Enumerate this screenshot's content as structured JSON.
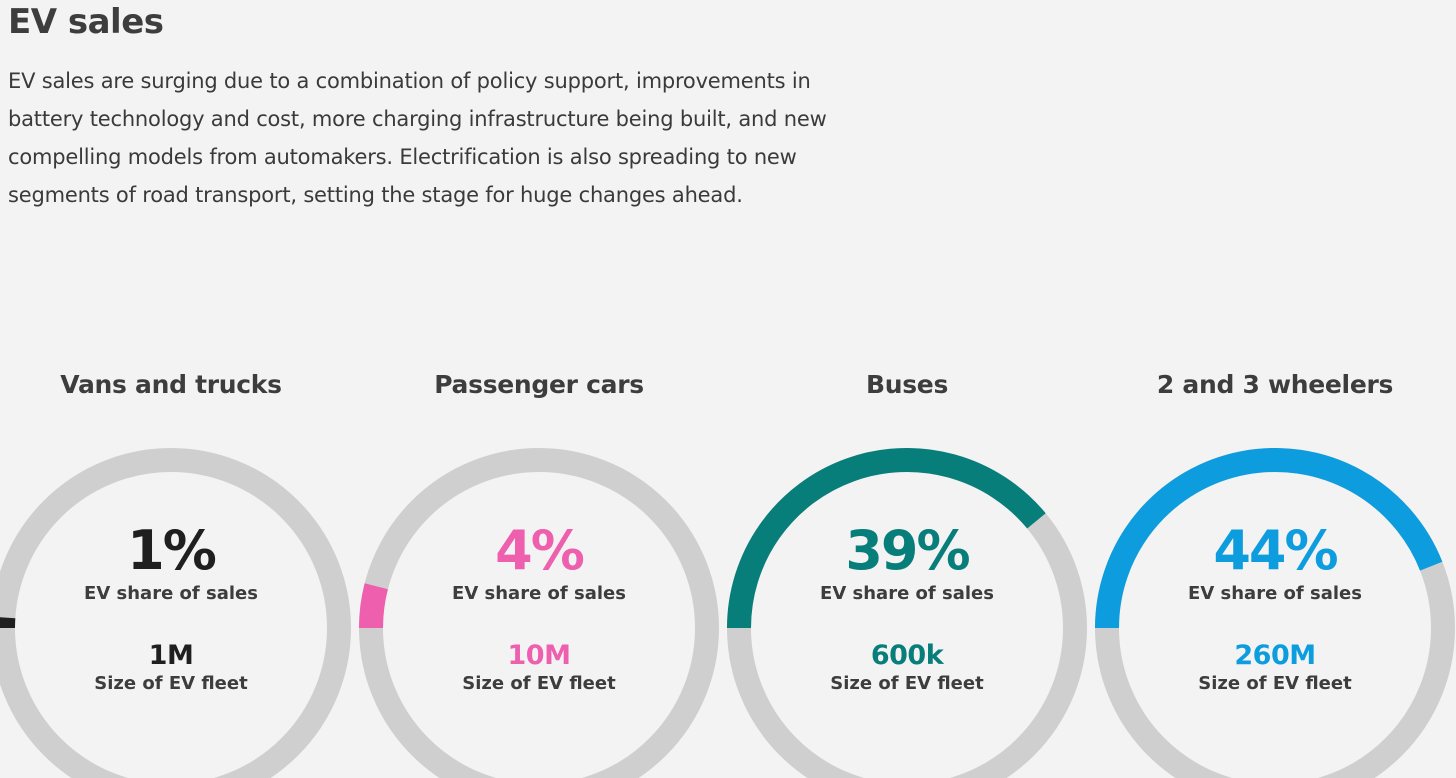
{
  "title": "EV sales",
  "intro": "EV sales are surging due to a combination of policy support, improvements in battery technology and cost, more charging infrastructure being built, and new compelling models from automakers. Electrification is also spreading to new segments of road transport, setting the stage for huge changes ahead.",
  "colors": {
    "track": "#cfcfcf",
    "background": "#f3f3f3"
  },
  "chart_data": {
    "type": "donut",
    "segments": [
      {
        "name": "Vans and trucks",
        "share_value": 1,
        "share_text": "1%",
        "share_label": "EV share of sales",
        "fleet_text": "1M",
        "fleet_label": "Size of EV fleet",
        "color": "#1f1f1f",
        "fleet_color": "#1f1f1f"
      },
      {
        "name": "Passenger cars",
        "share_value": 4,
        "share_text": "4%",
        "share_label": "EV share of sales",
        "fleet_text": "10M",
        "fleet_label": "Size of EV fleet",
        "color": "#ee5fae",
        "fleet_color": "#ee5fae"
      },
      {
        "name": "Buses",
        "share_value": 39,
        "share_text": "39%",
        "share_label": "EV share of sales",
        "fleet_text": "600k",
        "fleet_label": "Size of EV fleet",
        "color": "#087e7a",
        "fleet_color": "#087e7a"
      },
      {
        "name": "2 and 3 wheelers",
        "share_value": 44,
        "share_text": "44%",
        "share_label": "EV share of sales",
        "fleet_text": "260M",
        "fleet_label": "Size of EV fleet",
        "color": "#0d9ddf",
        "fleet_color": "#0d9ddf"
      }
    ]
  }
}
